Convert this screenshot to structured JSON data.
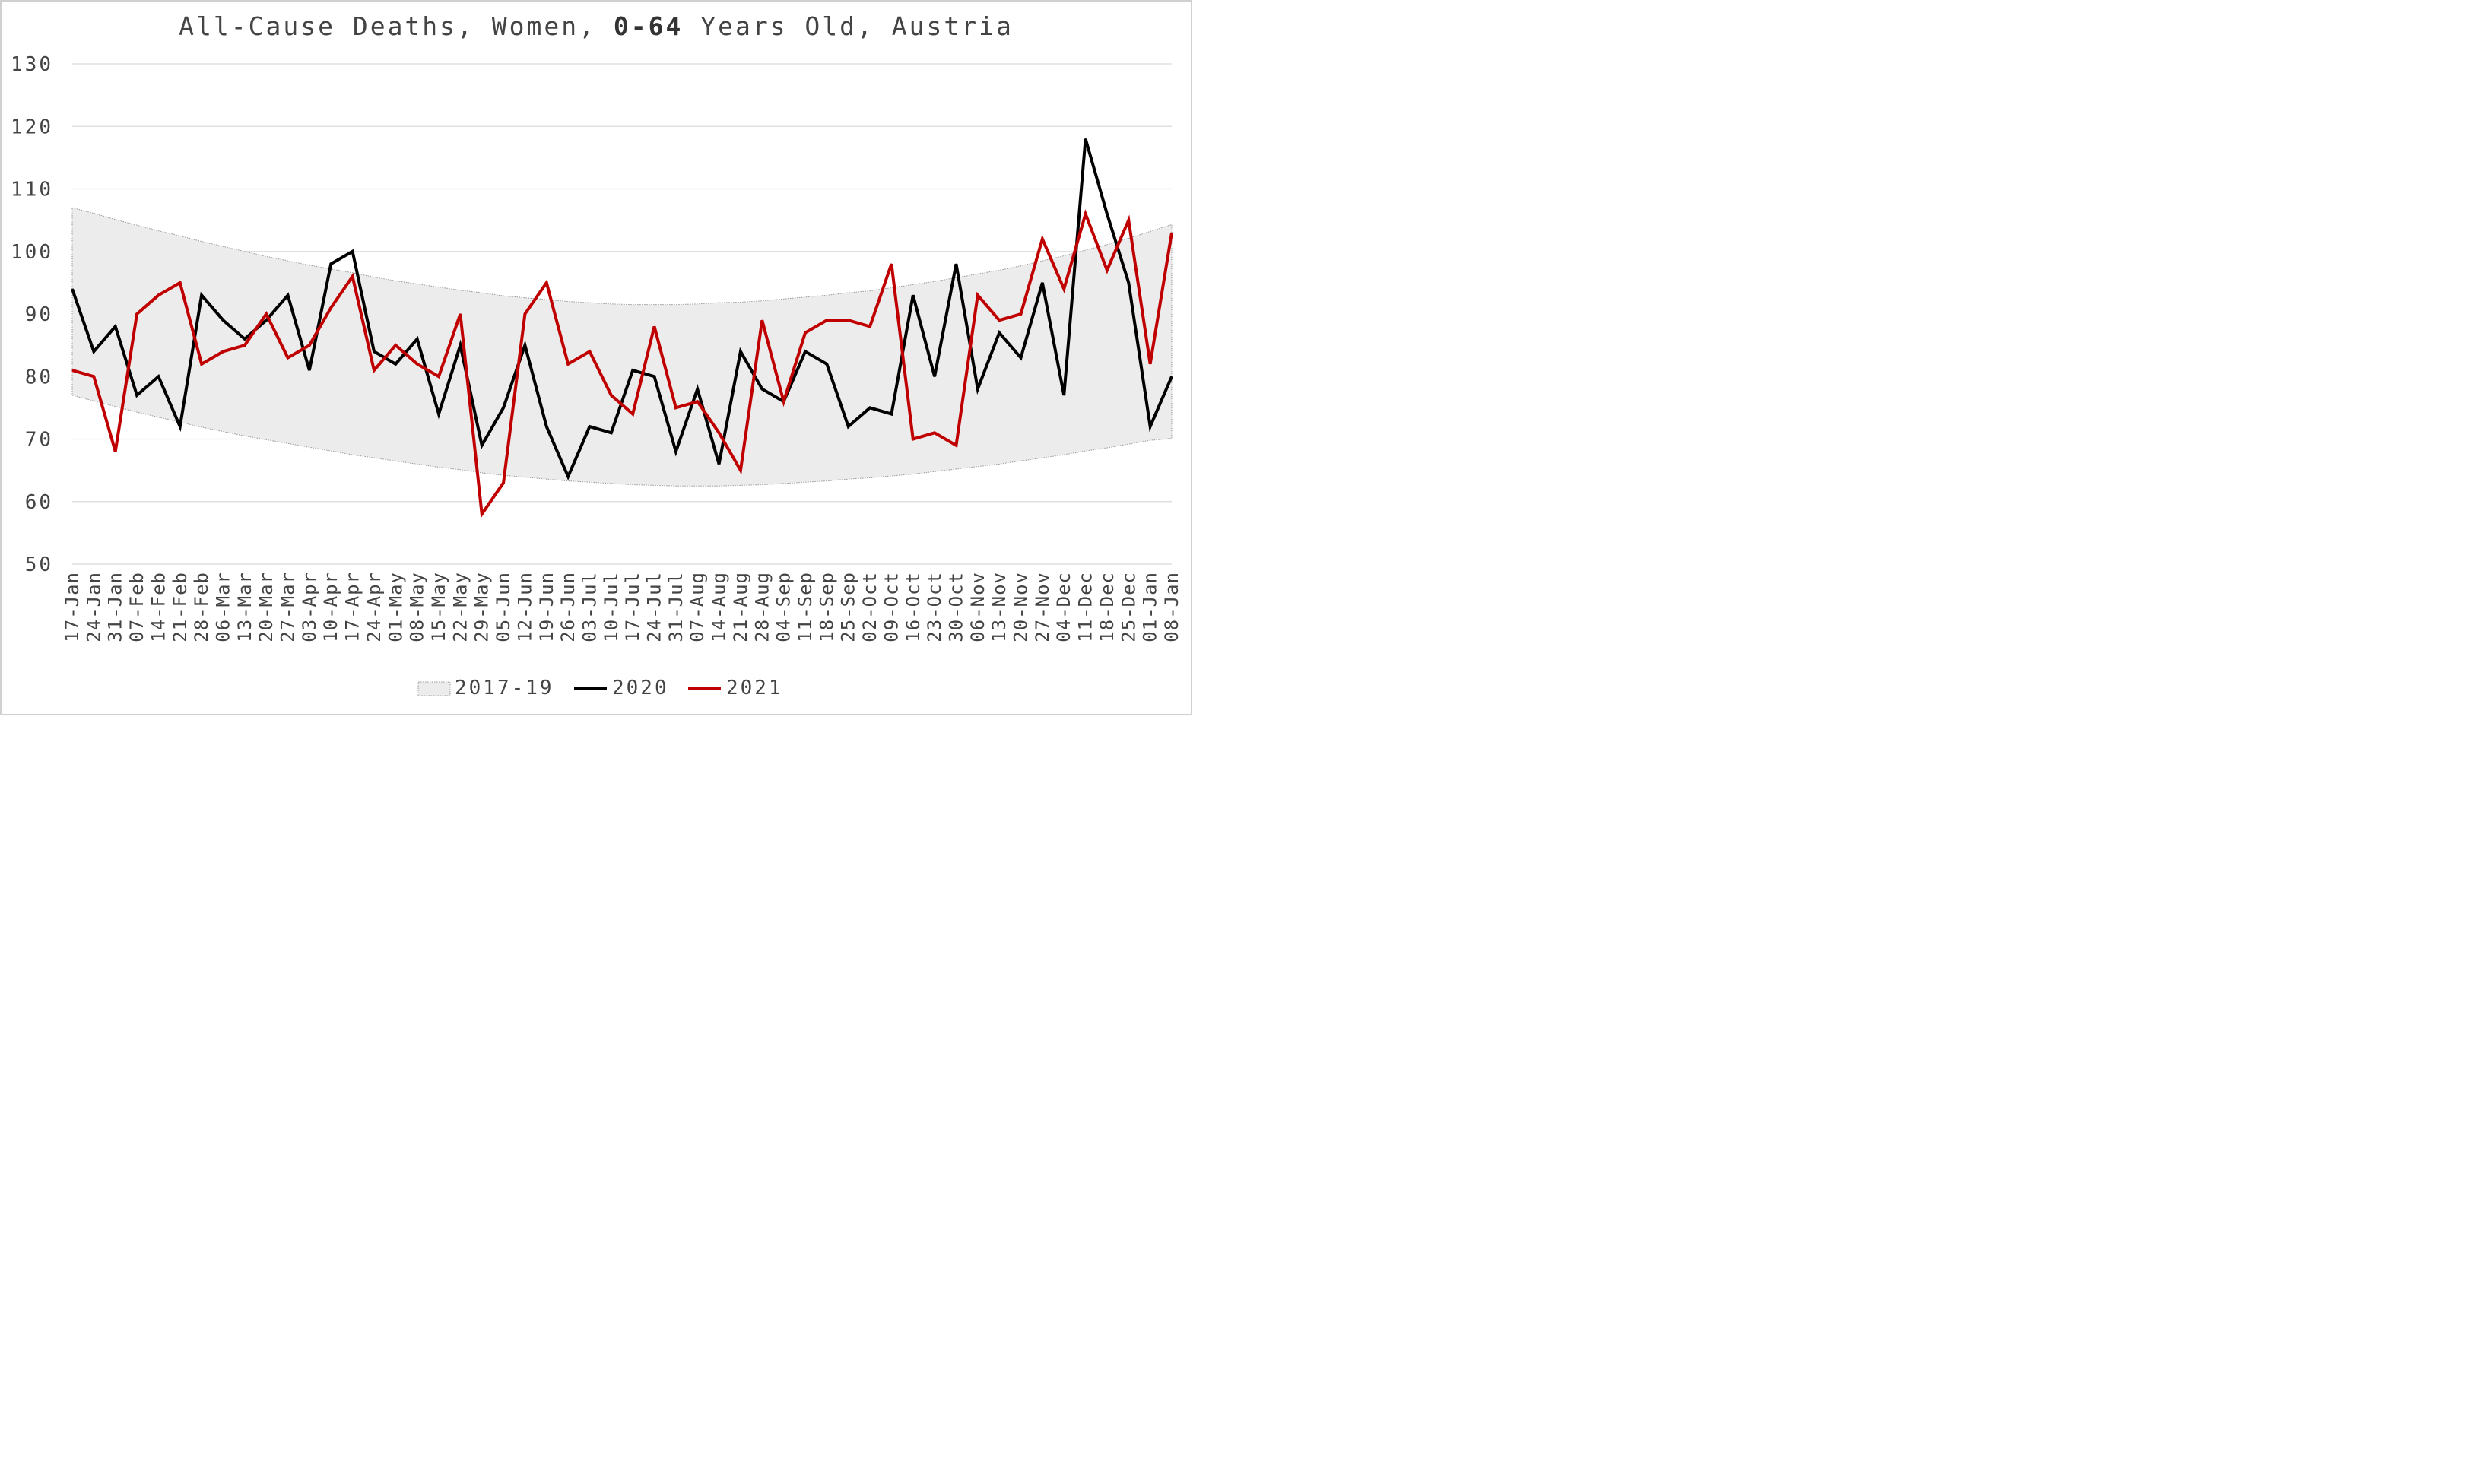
{
  "chart_data": {
    "type": "line",
    "title_parts": [
      "All-Cause Deaths, Women, ",
      "0-64",
      " Years Old, Austria"
    ],
    "ylim": [
      50,
      130
    ],
    "yticks": [
      "50",
      "60",
      "70",
      "80",
      "90",
      "100",
      "110",
      "120",
      "130"
    ],
    "grid": true,
    "legend_position": "bottom",
    "categories": [
      "17-Jan",
      "24-Jan",
      "31-Jan",
      "07-Feb",
      "14-Feb",
      "21-Feb",
      "28-Feb",
      "06-Mar",
      "13-Mar",
      "20-Mar",
      "27-Mar",
      "03-Apr",
      "10-Apr",
      "17-Apr",
      "24-Apr",
      "01-May",
      "08-May",
      "15-May",
      "22-May",
      "29-May",
      "05-Jun",
      "12-Jun",
      "19-Jun",
      "26-Jun",
      "03-Jul",
      "10-Jul",
      "17-Jul",
      "24-Jul",
      "31-Jul",
      "07-Aug",
      "14-Aug",
      "21-Aug",
      "28-Aug",
      "04-Sep",
      "11-Sep",
      "18-Sep",
      "25-Sep",
      "02-Oct",
      "09-Oct",
      "16-Oct",
      "23-Oct",
      "30-Oct",
      "06-Nov",
      "13-Nov",
      "20-Nov",
      "27-Nov",
      "04-Dec",
      "11-Dec",
      "18-Dec",
      "25-Dec",
      "01-Jan",
      "08-Jan"
    ],
    "band": {
      "name": "2017-19",
      "fill": "#ececec",
      "stroke": "#9a9a9a",
      "upper": [
        107,
        106.1,
        105.1,
        104.2,
        103.3,
        102.5,
        101.6,
        100.8,
        100,
        99.2,
        98.5,
        97.8,
        97.2,
        96.6,
        95.9,
        95.3,
        94.8,
        94.3,
        93.8,
        93.4,
        92.9,
        92.6,
        92.3,
        92,
        91.8,
        91.6,
        91.5,
        91.5,
        91.5,
        91.6,
        91.8,
        91.9,
        92.1,
        92.4,
        92.7,
        93,
        93.4,
        93.7,
        94.2,
        94.7,
        95.2,
        95.8,
        96.4,
        97,
        97.7,
        98.5,
        99.3,
        100.2,
        101.1,
        102.1,
        103.2,
        104.3
      ],
      "lower": [
        77,
        76.1,
        75.2,
        74.3,
        73.5,
        72.7,
        71.9,
        71.2,
        70.5,
        69.9,
        69.3,
        68.7,
        68.1,
        67.5,
        67,
        66.5,
        66,
        65.5,
        65.1,
        64.6,
        64.2,
        63.9,
        63.6,
        63.3,
        63.1,
        62.9,
        62.7,
        62.6,
        62.5,
        62.5,
        62.5,
        62.6,
        62.7,
        62.9,
        63.1,
        63.3,
        63.6,
        63.8,
        64.1,
        64.4,
        64.8,
        65.2,
        65.6,
        66,
        66.5,
        67,
        67.5,
        68.1,
        68.6,
        69.2,
        69.8,
        70.1
      ]
    },
    "series": [
      {
        "name": "2020",
        "color": "#000000",
        "values": [
          94,
          84,
          88,
          77,
          80,
          72,
          93,
          89,
          86,
          89,
          93,
          81,
          98,
          100,
          84,
          82,
          86,
          74,
          85,
          69,
          75,
          85,
          72,
          64,
          72,
          71,
          81,
          80,
          68,
          78,
          66,
          84,
          78,
          76,
          84,
          82,
          72,
          75,
          74,
          93,
          80,
          98,
          78,
          87,
          83,
          95,
          77,
          118,
          106,
          95,
          72,
          80
        ]
      },
      {
        "name": "2021",
        "color": "#c00000",
        "values": [
          81,
          80,
          68,
          90,
          93,
          95,
          82,
          84,
          85,
          90,
          83,
          85,
          91,
          96,
          81,
          85,
          82,
          80,
          90,
          58,
          63,
          90,
          95,
          82,
          84,
          77,
          74,
          88,
          75,
          76,
          71,
          65,
          89,
          76,
          87,
          89,
          89,
          88,
          98,
          70,
          71,
          69,
          93,
          89,
          90,
          102,
          94,
          106,
          97,
          105,
          82,
          103
        ]
      }
    ]
  }
}
